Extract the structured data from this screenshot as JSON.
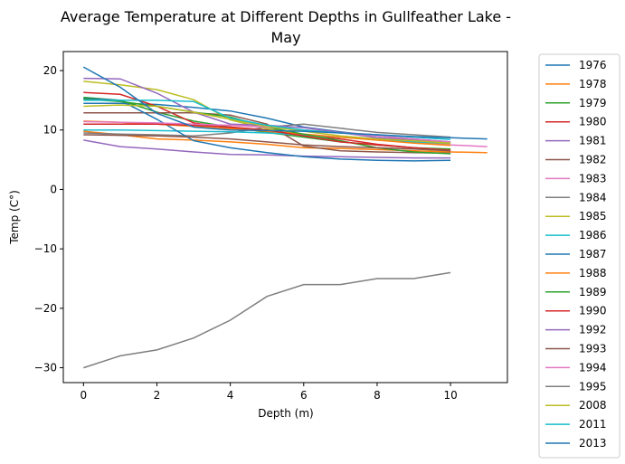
{
  "chart_data": {
    "type": "line",
    "title": "Average Temperature at Different Depths in Gullfeather Lake -\nMay",
    "title_lines": [
      "Average Temperature at Different Depths in Gullfeather Lake -",
      "May"
    ],
    "xlabel": "Depth (m)",
    "ylabel": "Temp (C°)",
    "xlim": [
      -0.55,
      11.55
    ],
    "ylim": [
      -32.5,
      23.2
    ],
    "xticks": [
      0,
      2,
      4,
      6,
      8,
      10
    ],
    "yticks": [
      -30,
      -20,
      -10,
      0,
      10,
      20
    ],
    "grid": false,
    "legend_position": "outside-right",
    "series": [
      {
        "name": "1976",
        "color": "#1f77b4",
        "x": [
          0,
          1,
          2,
          3,
          4,
          5,
          6,
          7,
          8,
          9,
          10
        ],
        "y": [
          14.5,
          14.5,
          14.3,
          13.8,
          13.2,
          12.0,
          10.5,
          9.7,
          9.0,
          8.5,
          8.0
        ]
      },
      {
        "name": "1978",
        "color": "#ff7f0e",
        "x": [
          0,
          1,
          2,
          3,
          4,
          5,
          6,
          7,
          8,
          9,
          10,
          11
        ],
        "y": [
          9.8,
          9.2,
          8.5,
          8.3,
          8.0,
          7.6,
          7.0,
          6.9,
          6.7,
          6.5,
          6.3,
          6.2
        ]
      },
      {
        "name": "1979",
        "color": "#2ca02c",
        "x": [
          0,
          1,
          2,
          3,
          4,
          5,
          6,
          7,
          8,
          9,
          10
        ],
        "y": [
          15.5,
          15.0,
          13.0,
          11.5,
          10.5,
          9.6,
          8.8,
          8.0,
          7.5,
          7.0,
          6.8
        ]
      },
      {
        "name": "1980",
        "color": "#d62728",
        "x": [
          0,
          1,
          2,
          3,
          4,
          5,
          6,
          7,
          8,
          9,
          10
        ],
        "y": [
          16.3,
          16.0,
          14.0,
          11.2,
          10.3,
          9.8,
          9.2,
          8.5,
          7.6,
          7.0,
          6.5
        ]
      },
      {
        "name": "1981",
        "color": "#9467bd",
        "x": [
          0,
          1,
          2,
          3,
          4,
          5,
          6,
          7,
          8,
          9,
          10
        ],
        "y": [
          8.3,
          7.2,
          6.8,
          6.3,
          5.9,
          5.8,
          5.6,
          5.5,
          5.4,
          5.3,
          5.3
        ]
      },
      {
        "name": "1982",
        "color": "#8c564b",
        "x": [
          0,
          1,
          2,
          3,
          4,
          5,
          6,
          7,
          8,
          9,
          10
        ],
        "y": [
          12.9,
          12.9,
          12.9,
          12.9,
          12.5,
          11.0,
          7.3,
          6.5,
          6.3,
          6.2,
          6.1
        ]
      },
      {
        "name": "1983",
        "color": "#e377c2",
        "x": [
          0,
          1,
          2,
          3,
          4,
          5,
          6,
          7,
          8,
          9,
          10,
          11
        ],
        "y": [
          11.0,
          11.0,
          11.0,
          10.9,
          10.8,
          10.5,
          10.0,
          9.6,
          9.2,
          8.0,
          7.5,
          7.2
        ]
      },
      {
        "name": "1984",
        "color": "#7f7f7f",
        "x": [
          0,
          1,
          2,
          3,
          4,
          5,
          6,
          7,
          8,
          9,
          10
        ],
        "y": [
          9.5,
          9.3,
          9.2,
          9.0,
          9.5,
          10.5,
          11.0,
          10.3,
          9.6,
          9.2,
          8.8
        ]
      },
      {
        "name": "1985",
        "color": "#bcbd22",
        "x": [
          0,
          1,
          2,
          3,
          4,
          5,
          6,
          7,
          8,
          9,
          10
        ],
        "y": [
          18.2,
          17.6,
          16.8,
          15.1,
          11.7,
          10.2,
          9.2,
          8.8,
          8.3,
          8.0,
          7.7
        ]
      },
      {
        "name": "1986",
        "color": "#17becf",
        "x": [
          0,
          1,
          2,
          3,
          4,
          5,
          6,
          7,
          8,
          9,
          10
        ],
        "y": [
          10.0,
          10.0,
          9.9,
          9.8,
          9.7,
          9.5,
          9.2,
          8.8,
          8.5,
          8.0,
          7.8
        ]
      },
      {
        "name": "1987",
        "color": "#1f77b4",
        "x": [
          0,
          1,
          2,
          3,
          4,
          5,
          6,
          7,
          8,
          9,
          10
        ],
        "y": [
          15.3,
          15.0,
          11.8,
          8.2,
          7.0,
          6.2,
          5.5,
          5.1,
          4.9,
          4.8,
          4.9
        ]
      },
      {
        "name": "1988",
        "color": "#ff7f0e",
        "x": [
          0,
          1,
          2,
          3,
          4,
          5,
          6,
          7,
          8,
          9,
          10
        ],
        "y": [
          11.5,
          11.3,
          11.0,
          10.6,
          10.2,
          9.8,
          9.3,
          8.8,
          8.3,
          7.8,
          7.4
        ]
      },
      {
        "name": "1989",
        "color": "#2ca02c",
        "x": [
          0,
          1,
          2,
          3,
          4,
          5,
          6,
          7,
          8,
          9,
          10
        ],
        "y": [
          15.2,
          14.8,
          14.0,
          13.0,
          12.2,
          10.5,
          9.3,
          8.2,
          7.0,
          6.3,
          6.0
        ]
      },
      {
        "name": "1990",
        "color": "#d62728",
        "x": [
          0,
          1,
          2,
          3,
          4,
          5,
          6,
          7,
          8,
          9,
          10
        ],
        "y": [
          11.0,
          11.0,
          11.0,
          10.8,
          10.5,
          10.0,
          9.0,
          8.0,
          7.5,
          7.0,
          6.6
        ]
      },
      {
        "name": "1992",
        "color": "#9467bd",
        "x": [
          0,
          1,
          2,
          3,
          4,
          5,
          6,
          7,
          8,
          9,
          10
        ],
        "y": [
          18.7,
          18.6,
          16.2,
          13.0,
          11.0,
          10.8,
          10.4,
          9.6,
          8.7,
          8.3,
          7.9
        ]
      },
      {
        "name": "1993",
        "color": "#8c564b",
        "x": [
          0,
          1,
          2,
          3,
          4,
          5,
          6,
          7,
          8,
          9,
          10
        ],
        "y": [
          9.2,
          9.1,
          9.0,
          8.8,
          8.5,
          8.0,
          7.5,
          7.2,
          7.0,
          6.8,
          6.5
        ]
      },
      {
        "name": "1994",
        "color": "#e377c2",
        "x": [
          0,
          1,
          2,
          3,
          4,
          5,
          6,
          7,
          8,
          9,
          10
        ],
        "y": [
          11.4,
          11.3,
          11.2,
          11.0,
          10.8,
          10.5,
          10.0,
          9.5,
          9.0,
          8.5,
          8.0
        ]
      },
      {
        "name": "1995",
        "color": "#7f7f7f",
        "x": [
          0,
          1,
          2,
          3,
          4,
          5,
          6,
          7,
          8,
          9,
          10
        ],
        "y": [
          -30,
          -28,
          -27,
          -25,
          -22,
          -18,
          -16,
          -16,
          -15,
          -15,
          -14
        ]
      },
      {
        "name": "2008",
        "color": "#bcbd22",
        "x": [
          0,
          1,
          2,
          3,
          4,
          5,
          6,
          7,
          8,
          9,
          10
        ],
        "y": [
          14.0,
          14.2,
          14.0,
          13.0,
          11.8,
          10.6,
          9.8,
          9.0,
          8.5,
          8.2,
          7.8
        ]
      },
      {
        "name": "2011",
        "color": "#17becf",
        "x": [
          0,
          1,
          2,
          3,
          4,
          5,
          6,
          7,
          8,
          9,
          10
        ],
        "y": [
          15.0,
          15.0,
          15.0,
          14.8,
          12.0,
          10.8,
          10.0,
          9.5,
          9.2,
          8.8,
          8.4
        ]
      },
      {
        "name": "2013",
        "color": "#1f77b4",
        "x": [
          0,
          1,
          2,
          3,
          4,
          5,
          6,
          7,
          8,
          9,
          10,
          11
        ],
        "y": [
          20.6,
          17.2,
          12.8,
          10.5,
          10.0,
          9.9,
          9.8,
          9.5,
          9.2,
          8.9,
          8.7,
          8.5
        ]
      }
    ]
  }
}
